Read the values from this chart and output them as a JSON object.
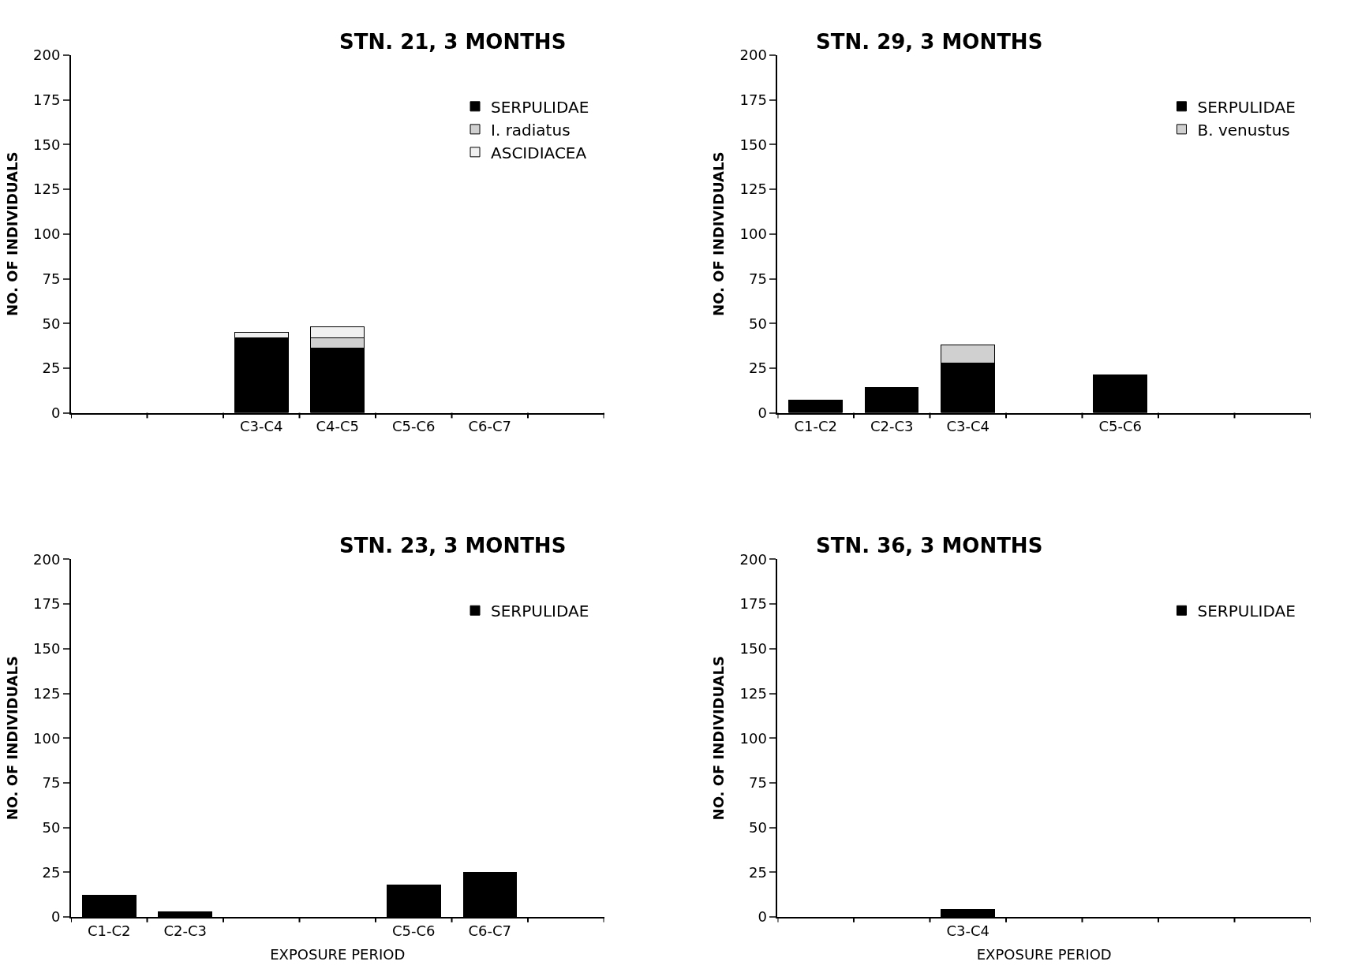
{
  "chart_data": [
    {
      "type": "bar",
      "title": "STN. 21, 3 MONTHS",
      "ylabel": "NO. OF INDIVIDUALS",
      "categories": [
        null,
        null,
        "C3-C4",
        "C4-C5",
        "C5-C6",
        "C6-C7",
        null
      ],
      "stacked": true,
      "ylim": [
        0,
        200
      ],
      "yticks": [
        0,
        25,
        50,
        75,
        100,
        125,
        150,
        175,
        200
      ],
      "legend": "top right",
      "series": [
        {
          "name": "SERPULIDAE",
          "color": "#000000",
          "values": [
            null,
            null,
            42,
            36,
            null,
            null,
            null
          ]
        },
        {
          "name": "I. radiatus",
          "color": "#d0d0d0",
          "values": [
            null,
            null,
            null,
            6,
            null,
            null,
            null
          ]
        },
        {
          "name": "ASCIDIACEA",
          "color": "#f0f0f0",
          "values": [
            null,
            null,
            3,
            6,
            null,
            null,
            null
          ]
        }
      ]
    },
    {
      "type": "bar",
      "title": "STN. 29, 3 MONTHS",
      "ylabel": "NO. OF INDIVIDUALS",
      "categories": [
        "C1-C2",
        "C2-C3",
        "C3-C4",
        null,
        "C5-C6",
        null,
        null
      ],
      "stacked": true,
      "ylim": [
        0,
        200
      ],
      "yticks": [
        0,
        25,
        50,
        75,
        100,
        125,
        150,
        175,
        200
      ],
      "legend": "top right",
      "series": [
        {
          "name": "SERPULIDAE",
          "color": "#000000",
          "values": [
            7,
            14,
            28,
            null,
            21,
            null,
            null
          ]
        },
        {
          "name": "B. venustus",
          "color": "#d0d0d0",
          "values": [
            null,
            null,
            10,
            null,
            null,
            null,
            null
          ]
        }
      ]
    },
    {
      "type": "bar",
      "title": "STN. 23, 3 MONTHS",
      "ylabel": "NO. OF INDIVIDUALS",
      "xlabel": "EXPOSURE PERIOD",
      "categories": [
        "C1-C2",
        "C2-C3",
        null,
        null,
        "C5-C6",
        "C6-C7",
        null
      ],
      "stacked": true,
      "ylim": [
        0,
        200
      ],
      "yticks": [
        0,
        25,
        50,
        75,
        100,
        125,
        150,
        175,
        200
      ],
      "legend": "top right",
      "series": [
        {
          "name": "SERPULIDAE",
          "color": "#000000",
          "values": [
            12,
            3,
            null,
            null,
            18,
            25,
            null
          ]
        }
      ]
    },
    {
      "type": "bar",
      "title": "STN. 36, 3 MONTHS",
      "ylabel": "NO. OF INDIVIDUALS",
      "xlabel": "EXPOSURE PERIOD",
      "categories": [
        null,
        null,
        "C3-C4",
        null,
        null,
        null,
        null
      ],
      "stacked": true,
      "ylim": [
        0,
        200
      ],
      "yticks": [
        0,
        25,
        50,
        75,
        100,
        125,
        150,
        175,
        200
      ],
      "legend": "top right",
      "series": [
        {
          "name": "SERPULIDAE",
          "color": "#000000",
          "values": [
            null,
            null,
            4,
            null,
            null,
            null,
            null
          ]
        }
      ]
    }
  ]
}
